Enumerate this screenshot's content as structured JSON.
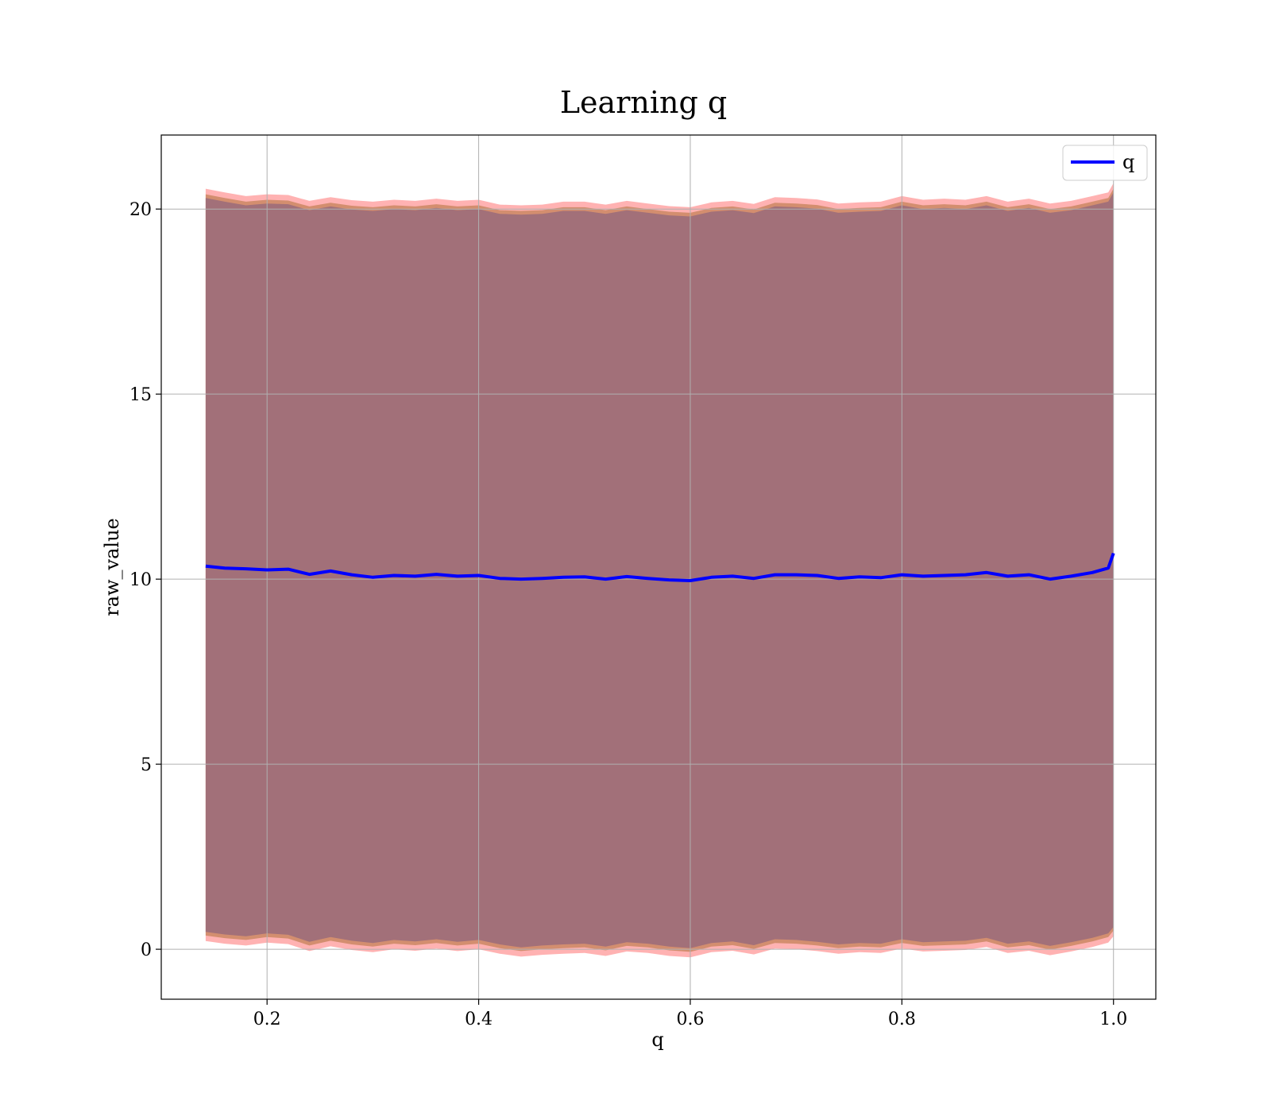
{
  "chart_data": {
    "type": "area",
    "title": "Learning q",
    "xlabel": "q",
    "ylabel": "raw_value",
    "xlim": [
      0.1,
      1.04
    ],
    "ylim": [
      -1.35,
      22.0
    ],
    "xticks": [
      0.2,
      0.4,
      0.6,
      0.8,
      1.0
    ],
    "xtick_labels": [
      "0.2",
      "0.4",
      "0.6",
      "0.8",
      "1.0"
    ],
    "yticks": [
      0,
      5,
      10,
      15,
      20
    ],
    "ytick_labels": [
      "0",
      "5",
      "10",
      "15",
      "20"
    ],
    "grid": true,
    "legend": {
      "position": "top-right",
      "entries": [
        "q"
      ]
    },
    "colors": {
      "line": "#0000ff",
      "band_outer": "#ff7f7f",
      "band_mid": "#c8845e",
      "band_inner": "#a27079",
      "grid": "#b0b0b0"
    },
    "series": [
      {
        "name": "q",
        "x": [
          0.142,
          0.16,
          0.18,
          0.2,
          0.22,
          0.24,
          0.26,
          0.28,
          0.3,
          0.32,
          0.34,
          0.36,
          0.38,
          0.4,
          0.42,
          0.44,
          0.46,
          0.48,
          0.5,
          0.52,
          0.54,
          0.56,
          0.58,
          0.6,
          0.62,
          0.64,
          0.66,
          0.68,
          0.7,
          0.72,
          0.74,
          0.76,
          0.78,
          0.8,
          0.82,
          0.84,
          0.86,
          0.88,
          0.9,
          0.92,
          0.94,
          0.96,
          0.98,
          0.995,
          1.0
        ],
        "y": [
          10.35,
          10.3,
          10.28,
          10.25,
          10.27,
          10.13,
          10.22,
          10.12,
          10.05,
          10.1,
          10.08,
          10.13,
          10.08,
          10.1,
          10.02,
          10.0,
          10.02,
          10.05,
          10.06,
          10.0,
          10.07,
          10.02,
          9.98,
          9.96,
          10.05,
          10.08,
          10.02,
          10.12,
          10.12,
          10.1,
          10.02,
          10.06,
          10.04,
          10.12,
          10.08,
          10.1,
          10.12,
          10.18,
          10.08,
          10.12,
          10.0,
          10.08,
          10.18,
          10.3,
          10.7
        ],
        "band_upper_outer": [
          20.55,
          20.45,
          20.35,
          20.4,
          20.38,
          20.22,
          20.32,
          20.24,
          20.2,
          20.25,
          20.22,
          20.28,
          20.22,
          20.25,
          20.12,
          20.1,
          20.12,
          20.2,
          20.2,
          20.12,
          20.22,
          20.15,
          20.08,
          20.05,
          20.18,
          20.22,
          20.14,
          20.32,
          20.3,
          20.26,
          20.15,
          20.18,
          20.2,
          20.35,
          20.25,
          20.28,
          20.25,
          20.35,
          20.2,
          20.28,
          20.15,
          20.22,
          20.35,
          20.45,
          20.7
        ],
        "band_lower_outer": [
          0.22,
          0.15,
          0.1,
          0.18,
          0.14,
          -0.05,
          0.08,
          -0.02,
          -0.08,
          0.0,
          -0.04,
          0.02,
          -0.05,
          0.0,
          -0.12,
          -0.2,
          -0.15,
          -0.12,
          -0.1,
          -0.18,
          -0.06,
          -0.1,
          -0.18,
          -0.22,
          -0.08,
          -0.04,
          -0.14,
          0.02,
          0.0,
          -0.05,
          -0.12,
          -0.08,
          -0.1,
          0.02,
          -0.06,
          -0.04,
          -0.02,
          0.06,
          -0.1,
          -0.04,
          -0.16,
          -0.06,
          0.06,
          0.18,
          0.35
        ]
      }
    ]
  }
}
